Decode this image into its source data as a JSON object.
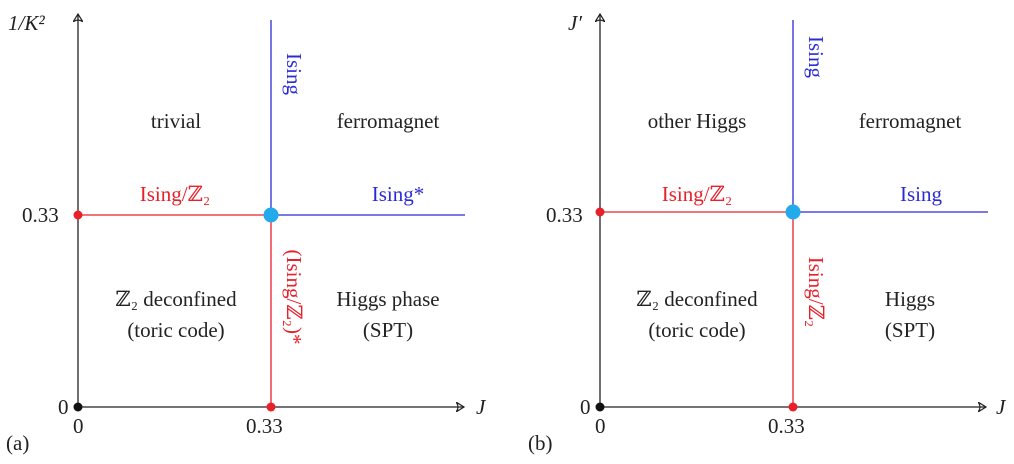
{
  "diagrams": [
    {
      "panel_label": "(a)",
      "y_axis_label": "1/K²",
      "x_axis_label": "J",
      "x_ticks": [
        "0",
        "0.33"
      ],
      "y_ticks": [
        "0",
        "0.33"
      ],
      "phases": {
        "top_left": "trivial",
        "top_right": "ferromagnet",
        "bottom_left_line1": "ℤ₂ deconfined",
        "bottom_left_line2": "(toric code)",
        "bottom_right_line1": "Higgs phase",
        "bottom_right_line2": "(SPT)"
      },
      "transitions": {
        "left_horizontal": "Ising/ℤ₂",
        "right_horizontal": "Ising*",
        "upper_vertical": "Ising",
        "lower_vertical": "(Ising/ℤ₂)*"
      },
      "colors": {
        "red": "#e8202a",
        "blue": "#2b2bd6",
        "cyan": "#22aaea"
      }
    },
    {
      "panel_label": "(b)",
      "y_axis_label": "J′",
      "x_axis_label": "J",
      "x_ticks": [
        "0",
        "0.33"
      ],
      "y_ticks": [
        "0",
        "0.33"
      ],
      "phases": {
        "top_left": "other Higgs",
        "top_right": "ferromagnet",
        "bottom_left_line1": "ℤ₂ deconfined",
        "bottom_left_line2": "(toric code)",
        "bottom_right_line1": "Higgs",
        "bottom_right_line2": "(SPT)"
      },
      "transitions": {
        "left_horizontal": "Ising/ℤ₂",
        "right_horizontal": "Ising",
        "upper_vertical": "Ising",
        "lower_vertical": "Ising/ℤ₂"
      },
      "colors": {
        "red": "#e8202a",
        "blue": "#2b2bd6",
        "cyan": "#22aaea"
      }
    }
  ]
}
